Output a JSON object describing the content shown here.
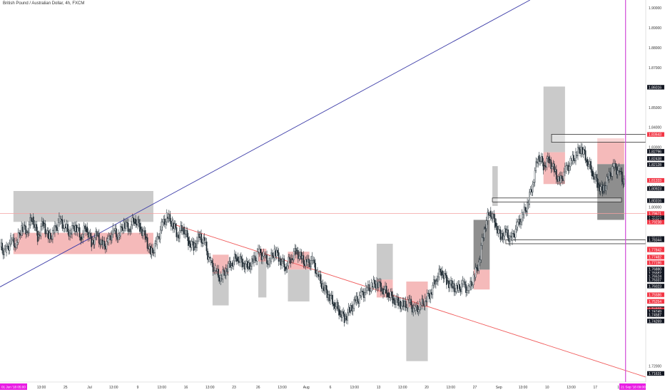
{
  "window": {
    "title": "British Pound / Australian Dollar, 4h, FXCM"
  },
  "colors": {
    "background": "#ffffff",
    "candle": "#1f2b33",
    "trendline_blue": "#3c3ca8",
    "trendline_red": "#f05a5a",
    "hline_red": "#f5a0a0",
    "vline_magenta": "#d14ad8",
    "gray_zone": "#bdbdbd",
    "red_zone": "#f3a9a9",
    "dark_zone": "#7a7a7a",
    "axis_text": "#333333",
    "label_dark": "#131722",
    "label_red": "#f23645",
    "label_magenta": "#e91ee4"
  },
  "chart_data": {
    "type": "candlestick",
    "title": "British Pound / Australian Dollar, 4h, FXCM",
    "ylim": [
      1.712,
      1.904
    ],
    "x_ticks": [
      "13:00",
      "25",
      "Jul",
      "13:00",
      "9",
      "13:00",
      "16",
      "13:00",
      "23",
      "26",
      "13:00",
      "Aug",
      "6",
      "13:00",
      "13",
      "13:00",
      "20",
      "13:00",
      "27",
      "Sep",
      "13:00",
      "10",
      "13:00",
      "17",
      "13"
    ],
    "x_start_label": "01 Jun '18  05:00",
    "x_end_label": "21 Sep '18  09:00",
    "y_ticks": [
      1.9,
      1.89,
      1.88,
      1.87,
      1.85,
      1.84,
      1.83,
      1.81,
      1.8,
      1.72
    ],
    "price_labels": [
      {
        "value": 1.86016,
        "style": "dark"
      },
      {
        "value": 1.83643,
        "style": "red"
      },
      {
        "value": 1.82796,
        "style": "dark"
      },
      {
        "value": 1.82438,
        "style": "dark"
      },
      {
        "value": 1.82128,
        "style": "dark"
      },
      {
        "value": 1.81333,
        "style": "red"
      },
      {
        "value": 1.80923,
        "style": "dark"
      },
      {
        "value": 1.80316,
        "style": "dark"
      },
      {
        "value": 1.79671,
        "style": "red"
      },
      {
        "value": 1.79456,
        "style": "dark"
      },
      {
        "value": 1.79357,
        "style": "dark"
      },
      {
        "value": 1.79238,
        "style": "red"
      },
      {
        "value": 1.78413,
        "style": "dark"
      },
      {
        "value": 1.78344,
        "style": "dark"
      },
      {
        "value": 1.77879,
        "style": "red"
      },
      {
        "value": 1.77842,
        "style": "red"
      },
      {
        "value": 1.77482,
        "style": "red"
      },
      {
        "value": 1.77196,
        "style": "red"
      },
      {
        "value": 1.7688,
        "style": "dark"
      },
      {
        "value": 1.76682,
        "style": "dark"
      },
      {
        "value": 1.76524,
        "style": "dark"
      },
      {
        "value": 1.76337,
        "style": "dark"
      },
      {
        "value": 1.76023,
        "style": "dark"
      },
      {
        "value": 1.75586,
        "style": "red"
      },
      {
        "value": 1.75254,
        "style": "red"
      },
      {
        "value": 1.74885,
        "style": "dark"
      },
      {
        "value": 1.7483,
        "style": "red"
      },
      {
        "value": 1.74749,
        "style": "dark"
      },
      {
        "value": 1.74587,
        "style": "dark"
      },
      {
        "value": 1.74269,
        "style": "dark"
      },
      {
        "value": 1.71631,
        "style": "dark"
      }
    ],
    "horizontal_line": 1.79671,
    "price_path": [
      [
        0,
        1.78
      ],
      [
        2,
        1.777
      ],
      [
        4,
        1.783
      ],
      [
        6,
        1.781
      ],
      [
        8,
        1.79
      ],
      [
        10,
        1.788
      ],
      [
        12,
        1.795
      ],
      [
        14,
        1.785
      ],
      [
        16,
        1.792
      ],
      [
        18,
        1.784
      ],
      [
        20,
        1.787
      ],
      [
        22,
        1.793
      ],
      [
        24,
        1.79
      ],
      [
        26,
        1.787
      ],
      [
        28,
        1.791
      ],
      [
        30,
        1.785
      ],
      [
        32,
        1.79
      ],
      [
        34,
        1.782
      ],
      [
        36,
        1.786
      ],
      [
        38,
        1.78
      ],
      [
        40,
        1.782
      ],
      [
        42,
        1.788
      ],
      [
        44,
        1.785
      ],
      [
        46,
        1.792
      ],
      [
        48,
        1.789
      ],
      [
        50,
        1.794
      ],
      [
        52,
        1.79
      ],
      [
        54,
        1.785
      ],
      [
        56,
        1.776
      ],
      [
        58,
        1.781
      ],
      [
        60,
        1.79
      ],
      [
        62,
        1.795
      ],
      [
        64,
        1.792
      ],
      [
        66,
        1.786
      ],
      [
        68,
        1.79
      ],
      [
        70,
        1.783
      ],
      [
        72,
        1.78
      ],
      [
        74,
        1.785
      ],
      [
        76,
        1.782
      ],
      [
        78,
        1.772
      ],
      [
        80,
        1.768
      ],
      [
        82,
        1.764
      ],
      [
        84,
        1.769
      ],
      [
        86,
        1.772
      ],
      [
        88,
        1.775
      ],
      [
        90,
        1.772
      ],
      [
        92,
        1.77
      ],
      [
        94,
        1.772
      ],
      [
        96,
        1.777
      ],
      [
        98,
        1.775
      ],
      [
        100,
        1.772
      ],
      [
        102,
        1.778
      ],
      [
        104,
        1.774
      ],
      [
        106,
        1.77
      ],
      [
        108,
        1.774
      ],
      [
        110,
        1.778
      ],
      [
        112,
        1.774
      ],
      [
        114,
        1.771
      ],
      [
        116,
        1.773
      ],
      [
        118,
        1.766
      ],
      [
        120,
        1.76
      ],
      [
        122,
        1.756
      ],
      [
        124,
        1.752
      ],
      [
        126,
        1.748
      ],
      [
        128,
        1.744
      ],
      [
        130,
        1.748
      ],
      [
        132,
        1.752
      ],
      [
        134,
        1.755
      ],
      [
        136,
        1.758
      ],
      [
        138,
        1.76
      ],
      [
        140,
        1.762
      ],
      [
        142,
        1.759
      ],
      [
        144,
        1.757
      ],
      [
        146,
        1.754
      ],
      [
        148,
        1.752
      ],
      [
        150,
        1.75
      ],
      [
        152,
        1.752
      ],
      [
        154,
        1.748
      ],
      [
        156,
        1.75
      ],
      [
        158,
        1.753
      ],
      [
        160,
        1.757
      ],
      [
        162,
        1.764
      ],
      [
        164,
        1.768
      ],
      [
        166,
        1.763
      ],
      [
        168,
        1.76
      ],
      [
        170,
        1.758
      ],
      [
        172,
        1.761
      ],
      [
        174,
        1.758
      ],
      [
        176,
        1.764
      ],
      [
        178,
        1.772
      ],
      [
        180,
        1.79
      ],
      [
        182,
        1.798
      ],
      [
        184,
        1.792
      ],
      [
        186,
        1.785
      ],
      [
        188,
        1.787
      ],
      [
        190,
        1.783
      ],
      [
        192,
        1.79
      ],
      [
        194,
        1.795
      ],
      [
        196,
        1.801
      ],
      [
        198,
        1.812
      ],
      [
        200,
        1.826
      ],
      [
        202,
        1.821
      ],
      [
        204,
        1.824
      ],
      [
        206,
        1.818
      ],
      [
        208,
        1.812
      ],
      [
        210,
        1.818
      ],
      [
        212,
        1.822
      ],
      [
        214,
        1.826
      ],
      [
        216,
        1.83
      ],
      [
        218,
        1.824
      ],
      [
        220,
        1.818
      ],
      [
        222,
        1.812
      ],
      [
        224,
        1.808
      ],
      [
        226,
        1.814
      ],
      [
        228,
        1.82
      ],
      [
        230,
        1.818
      ],
      [
        232,
        1.812
      ]
    ],
    "zones": [
      {
        "kind": "gray",
        "x0": 5,
        "x1": 57,
        "y0": 1.808,
        "y1": 1.7925
      },
      {
        "kind": "red",
        "x0": 5,
        "x1": 57,
        "y0": 1.787,
        "y1": 1.7763
      },
      {
        "kind": "red",
        "x0": 79,
        "x1": 85,
        "y0": 1.776,
        "y1": 1.7665
      },
      {
        "kind": "gray",
        "x0": 79,
        "x1": 85,
        "y0": 1.7665,
        "y1": 1.7505
      },
      {
        "kind": "gray",
        "x0": 96,
        "x1": 99,
        "y0": 1.7775,
        "y1": 1.7545
      },
      {
        "kind": "red",
        "x0": 96,
        "x1": 99,
        "y0": 1.779,
        "y1": 1.7725
      },
      {
        "kind": "red",
        "x0": 107,
        "x1": 115,
        "y0": 1.7775,
        "y1": 1.7685
      },
      {
        "kind": "gray",
        "x0": 107,
        "x1": 115,
        "y0": 1.7685,
        "y1": 1.7525
      },
      {
        "kind": "gray",
        "x0": 140,
        "x1": 146,
        "y0": 1.7815,
        "y1": 1.7635
      },
      {
        "kind": "red",
        "x0": 140,
        "x1": 146,
        "y0": 1.7635,
        "y1": 1.7545
      },
      {
        "kind": "red",
        "x0": 151,
        "x1": 159,
        "y0": 1.7625,
        "y1": 1.7495
      },
      {
        "kind": "gray",
        "x0": 151,
        "x1": 159,
        "y0": 1.7495,
        "y1": 1.7225
      },
      {
        "kind": "red",
        "x0": 176,
        "x1": 182,
        "y0": 1.7685,
        "y1": 1.7585
      },
      {
        "kind": "dark",
        "x0": 176,
        "x1": 182,
        "y0": 1.7935,
        "y1": 1.7685
      },
      {
        "kind": "gray",
        "x0": 183,
        "x1": 185,
        "y0": 1.8205,
        "y1": 1.8005
      },
      {
        "kind": "gray",
        "x0": 202,
        "x1": 210,
        "y0": 1.8605,
        "y1": 1.8275
      },
      {
        "kind": "red",
        "x0": 202,
        "x1": 210,
        "y0": 1.8275,
        "y1": 1.8115
      },
      {
        "kind": "red",
        "x0": 222,
        "x1": 232,
        "y0": 1.8345,
        "y1": 1.8215
      },
      {
        "kind": "dark",
        "x0": 222,
        "x1": 232,
        "y0": 1.8215,
        "y1": 1.7935
      }
    ],
    "boxes": [
      {
        "x0": 205,
        "x1": 240,
        "y0": 1.8365,
        "y1": 1.8325
      },
      {
        "x0": 183,
        "x1": 231,
        "y0": 1.8045,
        "y1": 1.8025
      },
      {
        "x0": 188,
        "x1": 240,
        "y0": 1.7835,
        "y1": 1.7815
      }
    ],
    "lines": [
      {
        "kind": "blue",
        "x0": 0,
        "y0": 1.7598,
        "x1": 197,
        "y1": 1.904
      },
      {
        "kind": "red",
        "x0": 64,
        "y0": 1.7915,
        "x1": 240,
        "y1": 1.7145
      }
    ],
    "vertical_line_x": 232.5
  }
}
